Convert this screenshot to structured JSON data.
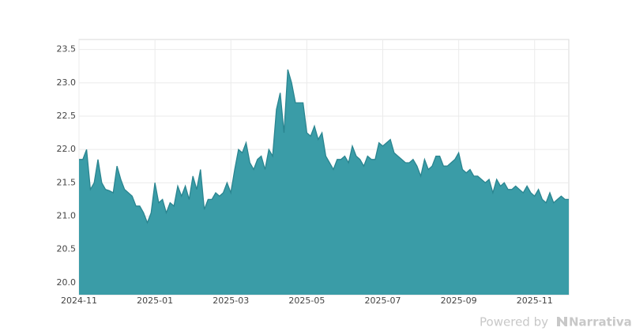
{
  "chart_data": {
    "type": "area",
    "categories": [
      "2024-11",
      null,
      null,
      null,
      null,
      null,
      null,
      null,
      null,
      null,
      null,
      null,
      null,
      null,
      null,
      null,
      null,
      null,
      null,
      null,
      "2025-01",
      null,
      null,
      null,
      null,
      null,
      null,
      null,
      null,
      null,
      null,
      null,
      null,
      null,
      null,
      null,
      null,
      null,
      null,
      null,
      "2025-03",
      null,
      null,
      null,
      null,
      null,
      null,
      null,
      null,
      null,
      null,
      null,
      null,
      null,
      null,
      null,
      null,
      null,
      null,
      null,
      "2025-05",
      null,
      null,
      null,
      null,
      null,
      null,
      null,
      null,
      null,
      null,
      null,
      null,
      null,
      null,
      null,
      null,
      null,
      null,
      null,
      "2025-07",
      null,
      null,
      null,
      null,
      null,
      null,
      null,
      null,
      null,
      null,
      null,
      null,
      null,
      null,
      null,
      null,
      null,
      null,
      null,
      "2025-09",
      null,
      null,
      null,
      null,
      null,
      null,
      null,
      null,
      null,
      null,
      null,
      null,
      null,
      null,
      null,
      null,
      null,
      null,
      null,
      "2025-11",
      null,
      null,
      null,
      null,
      null,
      null,
      null,
      null,
      null
    ],
    "values": [
      21.85,
      21.85,
      22.0,
      21.4,
      21.5,
      21.85,
      21.5,
      21.4,
      21.38,
      21.35,
      21.75,
      21.55,
      21.4,
      21.35,
      21.3,
      21.15,
      21.15,
      21.05,
      20.9,
      21.05,
      21.5,
      21.2,
      21.25,
      21.05,
      21.2,
      21.15,
      21.45,
      21.3,
      21.45,
      21.25,
      21.6,
      21.4,
      21.7,
      21.1,
      21.25,
      21.25,
      21.35,
      21.3,
      21.35,
      21.5,
      21.35,
      21.7,
      22.0,
      21.95,
      22.1,
      21.8,
      21.7,
      21.85,
      21.9,
      21.7,
      22.0,
      21.9,
      22.6,
      22.85,
      22.25,
      23.2,
      23.0,
      22.7,
      22.7,
      22.7,
      22.25,
      22.2,
      22.35,
      22.15,
      22.25,
      21.9,
      21.8,
      21.7,
      21.85,
      21.85,
      21.9,
      21.8,
      22.05,
      21.9,
      21.85,
      21.75,
      21.9,
      21.85,
      21.85,
      22.1,
      22.05,
      22.1,
      22.15,
      21.95,
      21.9,
      21.85,
      21.8,
      21.8,
      21.85,
      21.75,
      21.6,
      21.85,
      21.7,
      21.75,
      21.9,
      21.9,
      21.75,
      21.75,
      21.8,
      21.85,
      21.95,
      21.7,
      21.65,
      21.7,
      21.6,
      21.6,
      21.55,
      21.5,
      21.55,
      21.35,
      21.55,
      21.45,
      21.5,
      21.4,
      21.4,
      21.45,
      21.4,
      21.35,
      21.45,
      21.35,
      21.3,
      21.4,
      21.25,
      21.2,
      21.35,
      21.2,
      21.25,
      21.3,
      21.25,
      21.25
    ],
    "color": "#3a9ca7",
    "line_color": "#2a8590",
    "ylim": [
      19.82,
      23.65
    ],
    "yticks": [
      {
        "value": 20,
        "label": "20.0"
      },
      20.5,
      {
        "value": 21,
        "label": "21.0"
      },
      21.5,
      {
        "value": 22,
        "label": "22.0"
      },
      22.5,
      {
        "value": 23,
        "label": "23.0"
      },
      23.5
    ],
    "grid": true
  },
  "footer": {
    "prefix": "Powered by",
    "brand": "Narrativa"
  }
}
